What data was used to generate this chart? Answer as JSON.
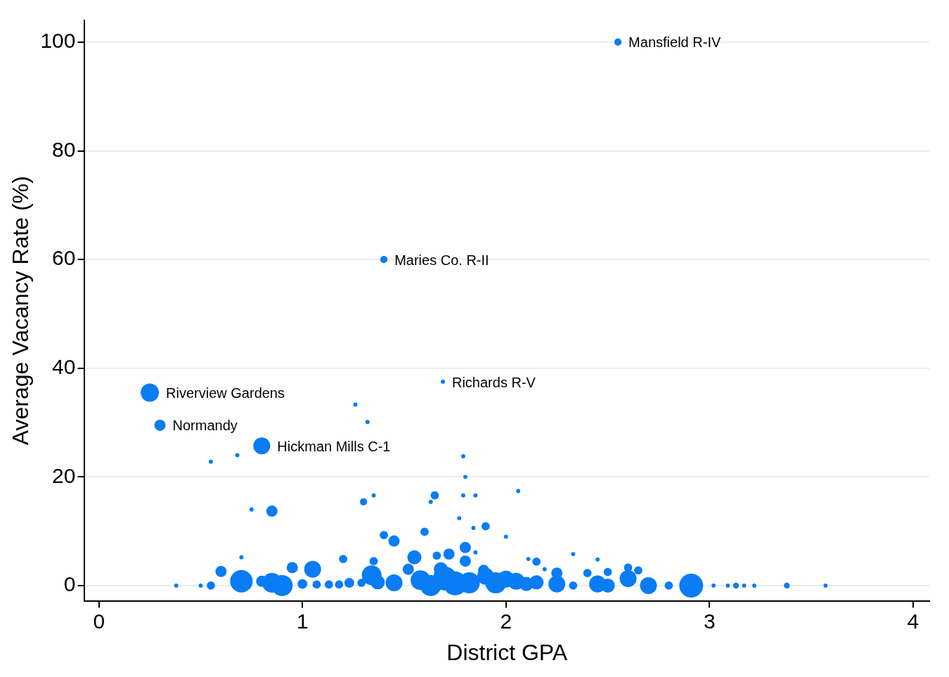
{
  "chart_data": {
    "type": "bubble",
    "xlabel": "District GPA",
    "ylabel": "Average Vacancy Rate (%)",
    "color": "#0a7cf4",
    "marker": "circle",
    "grid": "y",
    "xlim": [
      -0.07,
      4.08
    ],
    "xticks": [
      0,
      1,
      2,
      3,
      4
    ],
    "ylim": [
      -2.8,
      104
    ],
    "yticks": [
      0,
      20,
      40,
      60,
      80,
      100
    ],
    "x": [
      2.55,
      1.4,
      1.69,
      0.25,
      0.3,
      0.8,
      1.26,
      1.32,
      0.55,
      0.68,
      1.79,
      1.8,
      0.75,
      0.85,
      1.3,
      1.35,
      1.65,
      1.63,
      1.79,
      1.85,
      2.06,
      1.77,
      1.6,
      1.84,
      1.9,
      2.0,
      1.4,
      1.45,
      1.8,
      2.33,
      2.45,
      0.7,
      0.6,
      1.2,
      1.55,
      0.95,
      1.05,
      0.38,
      0.5,
      0.55,
      0.7,
      0.85,
      0.9,
      0.8,
      1.0,
      1.07,
      1.13,
      1.18,
      1.23,
      1.29,
      1.37,
      1.34,
      1.35,
      1.45,
      1.52,
      1.58,
      1.63,
      1.7,
      1.75,
      1.82,
      1.66,
      1.72,
      1.68,
      1.8,
      1.9,
      1.95,
      2.0,
      2.05,
      2.1,
      2.15,
      1.85,
      1.89,
      2.11,
      2.15,
      2.19,
      2.25,
      2.25,
      2.33,
      2.4,
      2.45,
      2.5,
      2.5,
      2.6,
      2.65,
      2.6,
      2.7,
      2.8,
      2.91,
      3.02,
      3.09,
      3.13,
      3.17,
      3.22,
      3.38,
      3.57
    ],
    "values": [
      100,
      60,
      37.5,
      35.5,
      29.5,
      25.7,
      33.3,
      30.1,
      22.8,
      24.0,
      23.8,
      20.0,
      14.0,
      13.7,
      15.4,
      16.6,
      16.6,
      15.4,
      16.6,
      16.6,
      17.4,
      12.4,
      9.9,
      10.6,
      10.9,
      9.0,
      9.3,
      8.2,
      7.0,
      5.8,
      4.8,
      5.2,
      2.6,
      4.9,
      5.2,
      3.3,
      3.0,
      0,
      0,
      0,
      0.8,
      0.5,
      0,
      0.8,
      0.3,
      0.2,
      0.2,
      0.2,
      0.5,
      0.5,
      0.6,
      1.9,
      4.5,
      0.5,
      3.0,
      1.0,
      0,
      1.3,
      0.4,
      0.5,
      5.5,
      5.8,
      3.0,
      4.5,
      1.7,
      0.5,
      1.2,
      0.8,
      0.3,
      0.6,
      6.1,
      2.8,
      4.9,
      4.4,
      3.0,
      2.3,
      0.3,
      0,
      2.3,
      0.3,
      0,
      2.5,
      3.3,
      2.8,
      1.3,
      0,
      0,
      0,
      0,
      0,
      0,
      0,
      0,
      0,
      0
    ],
    "sizes": [
      0.09,
      0.09,
      0.03,
      0.58,
      0.22,
      0.5,
      0.03,
      0.03,
      0.03,
      0.03,
      0.03,
      0.03,
      0.03,
      0.22,
      0.09,
      0.03,
      0.12,
      0.03,
      0.03,
      0.03,
      0.03,
      0.03,
      0.12,
      0.03,
      0.12,
      0.03,
      0.12,
      0.22,
      0.22,
      0.03,
      0.03,
      0.03,
      0.22,
      0.12,
      0.35,
      0.22,
      0.5,
      0.03,
      0.03,
      0.12,
      0.89,
      0.68,
      0.78,
      0.22,
      0.17,
      0.12,
      0.12,
      0.12,
      0.17,
      0.12,
      0.35,
      0.68,
      0.12,
      0.5,
      0.22,
      0.68,
      0.78,
      1,
      1,
      0.78,
      0.12,
      0.22,
      0.35,
      0.22,
      0.5,
      0.78,
      0.5,
      0.5,
      0.35,
      0.35,
      0.03,
      0.22,
      0.03,
      0.12,
      0.03,
      0.22,
      0.5,
      0.12,
      0.12,
      0.5,
      0.35,
      0.12,
      0.12,
      0.12,
      0.5,
      0.5,
      0.12,
      1,
      0.03,
      0.03,
      0.06,
      0.03,
      0.03,
      0.06,
      0.03
    ],
    "annotations": [
      {
        "text": "Mansfield R-IV",
        "x": 2.55,
        "y": 100
      },
      {
        "text": "Maries Co. R-II",
        "x": 1.4,
        "y": 60
      },
      {
        "text": "Richards R-V",
        "x": 1.69,
        "y": 37.5
      },
      {
        "text": "Riverview Gardens",
        "x": 0.25,
        "y": 35.5
      },
      {
        "text": "Normandy",
        "x": 0.3,
        "y": 29.5
      },
      {
        "text": "Hickman Mills C-1",
        "x": 0.8,
        "y": 25.7
      }
    ]
  }
}
